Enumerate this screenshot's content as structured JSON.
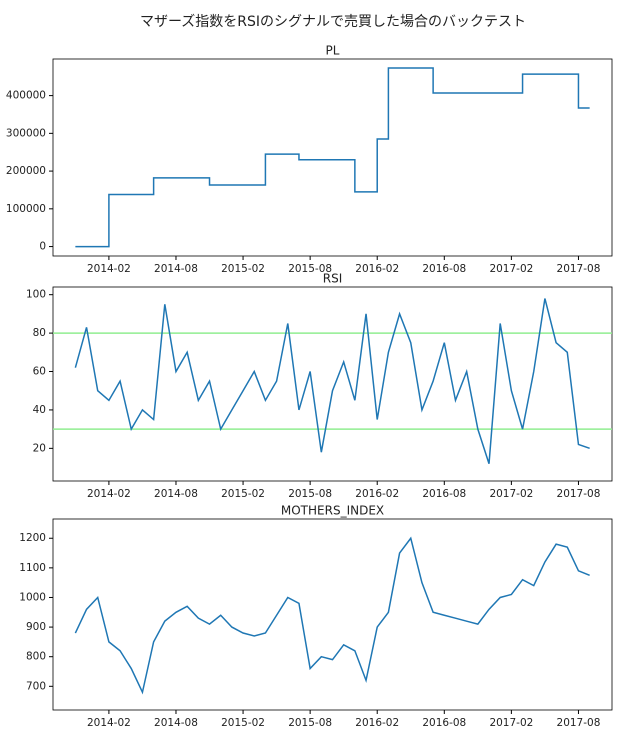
{
  "title": "マザーズ指数をRSIのシグナルで売買した場合のバックテスト",
  "chart_data": [
    {
      "type": "line",
      "title": "PL",
      "drawstyle": "steps-post",
      "color": "#1f77b4",
      "x": [
        "2013-11",
        "2013-12",
        "2014-01",
        "2014-02",
        "2014-03",
        "2014-04",
        "2014-05",
        "2014-06",
        "2014-07",
        "2014-08",
        "2014-09",
        "2014-10",
        "2014-11",
        "2014-12",
        "2015-01",
        "2015-02",
        "2015-03",
        "2015-04",
        "2015-05",
        "2015-06",
        "2015-07",
        "2015-08",
        "2015-09",
        "2015-10",
        "2015-11",
        "2015-12",
        "2016-01",
        "2016-02",
        "2016-03",
        "2016-04",
        "2016-05",
        "2016-06",
        "2016-07",
        "2016-08",
        "2016-09",
        "2016-10",
        "2016-11",
        "2016-12",
        "2017-01",
        "2017-02",
        "2017-03",
        "2017-04",
        "2017-05",
        "2017-06",
        "2017-07",
        "2017-08",
        "2017-09"
      ],
      "values": [
        0,
        0,
        0,
        138000,
        138000,
        138000,
        138000,
        182000,
        182000,
        182000,
        182000,
        182000,
        163000,
        163000,
        163000,
        163000,
        163000,
        245000,
        245000,
        245000,
        230000,
        230000,
        230000,
        230000,
        230000,
        145000,
        145000,
        285000,
        473000,
        473000,
        473000,
        473000,
        407000,
        407000,
        407000,
        407000,
        407000,
        407000,
        407000,
        407000,
        457000,
        457000,
        457000,
        457000,
        457000,
        367000,
        367000
      ],
      "xlim": [
        "2013-09",
        "2017-11"
      ],
      "xticks": [
        "2014-02",
        "2014-08",
        "2015-02",
        "2015-08",
        "2016-02",
        "2016-08",
        "2017-02",
        "2017-08"
      ],
      "ylim": [
        -25000,
        497000
      ],
      "yticks": [
        0,
        100000,
        200000,
        300000,
        400000
      ]
    },
    {
      "type": "line",
      "title": "RSI",
      "color": "#1f77b4",
      "hlines": [
        80,
        30
      ],
      "hline_color": "#90ee90",
      "x": [
        "2013-11",
        "2013-12",
        "2014-01",
        "2014-02",
        "2014-03",
        "2014-04",
        "2014-05",
        "2014-06",
        "2014-07",
        "2014-08",
        "2014-09",
        "2014-10",
        "2014-11",
        "2014-12",
        "2015-01",
        "2015-02",
        "2015-03",
        "2015-04",
        "2015-05",
        "2015-06",
        "2015-07",
        "2015-08",
        "2015-09",
        "2015-10",
        "2015-11",
        "2015-12",
        "2016-01",
        "2016-02",
        "2016-03",
        "2016-04",
        "2016-05",
        "2016-06",
        "2016-07",
        "2016-08",
        "2016-09",
        "2016-10",
        "2016-11",
        "2016-12",
        "2017-01",
        "2017-02",
        "2017-03",
        "2017-04",
        "2017-05",
        "2017-06",
        "2017-07",
        "2017-08",
        "2017-09"
      ],
      "values": [
        62,
        83,
        50,
        45,
        55,
        30,
        40,
        35,
        95,
        60,
        70,
        45,
        55,
        30,
        40,
        50,
        60,
        45,
        55,
        85,
        40,
        60,
        18,
        50,
        65,
        45,
        90,
        35,
        70,
        90,
        75,
        40,
        55,
        75,
        45,
        60,
        30,
        12,
        85,
        50,
        30,
        60,
        98,
        75,
        70,
        22,
        20
      ],
      "xlim": [
        "2013-09",
        "2017-11"
      ],
      "xticks": [
        "2014-02",
        "2014-08",
        "2015-02",
        "2015-08",
        "2016-02",
        "2016-08",
        "2017-02",
        "2017-08"
      ],
      "ylim": [
        3,
        104
      ],
      "yticks": [
        20,
        40,
        60,
        80,
        100
      ]
    },
    {
      "type": "line",
      "title": "MOTHERS_INDEX",
      "color": "#1f77b4",
      "x": [
        "2013-11",
        "2013-12",
        "2014-01",
        "2014-02",
        "2014-03",
        "2014-04",
        "2014-05",
        "2014-06",
        "2014-07",
        "2014-08",
        "2014-09",
        "2014-10",
        "2014-11",
        "2014-12",
        "2015-01",
        "2015-02",
        "2015-03",
        "2015-04",
        "2015-05",
        "2015-06",
        "2015-07",
        "2015-08",
        "2015-09",
        "2015-10",
        "2015-11",
        "2015-12",
        "2016-01",
        "2016-02",
        "2016-03",
        "2016-04",
        "2016-05",
        "2016-06",
        "2016-07",
        "2016-08",
        "2016-09",
        "2016-10",
        "2016-11",
        "2016-12",
        "2017-01",
        "2017-02",
        "2017-03",
        "2017-04",
        "2017-05",
        "2017-06",
        "2017-07",
        "2017-08",
        "2017-09"
      ],
      "values": [
        880,
        960,
        1000,
        850,
        820,
        760,
        680,
        850,
        920,
        950,
        970,
        930,
        910,
        940,
        900,
        880,
        870,
        880,
        940,
        1000,
        980,
        760,
        800,
        790,
        840,
        820,
        720,
        900,
        950,
        1150,
        1200,
        1050,
        950,
        940,
        930,
        920,
        910,
        960,
        1000,
        1010,
        1060,
        1040,
        1120,
        1180,
        1170,
        1090,
        1075
      ],
      "xlim": [
        "2013-09",
        "2017-11"
      ],
      "xticks": [
        "2014-02",
        "2014-08",
        "2015-02",
        "2015-08",
        "2016-02",
        "2016-08",
        "2017-02",
        "2017-08"
      ],
      "ylim": [
        620,
        1265
      ],
      "yticks": [
        700,
        800,
        900,
        1000,
        1100,
        1200
      ]
    }
  ]
}
